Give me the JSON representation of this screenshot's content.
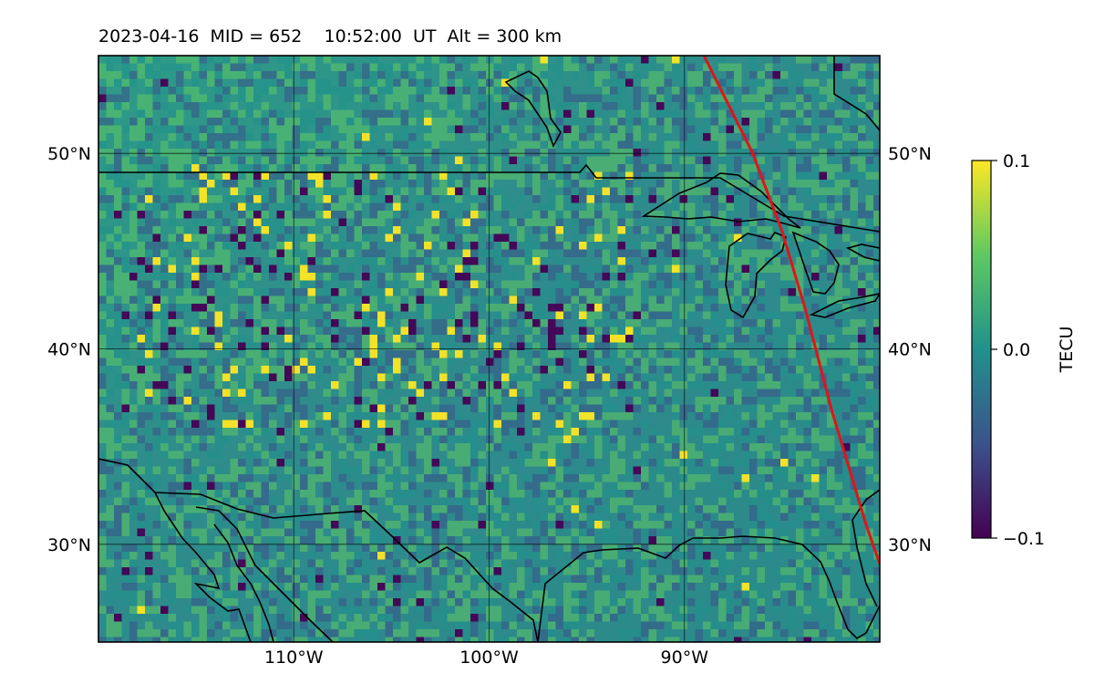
{
  "title": "2023-04-16  MID = 652    10:52:00  UT  Alt = 300 km",
  "map": {
    "lon_range": [
      -120,
      -80
    ],
    "lat_range": [
      25,
      55
    ],
    "lon_ticks": [
      {
        "value": -110,
        "label": "110°W"
      },
      {
        "value": -100,
        "label": "100°W"
      },
      {
        "value": -90,
        "label": "90°W"
      }
    ],
    "lat_ticks": [
      {
        "value": 50,
        "label": "50°N"
      },
      {
        "value": 40,
        "label": "40°N"
      },
      {
        "value": 30,
        "label": "30°N"
      }
    ],
    "track_color": "#e0141a",
    "track_points": [
      [
        -89,
        55
      ],
      [
        -87.5,
        52
      ],
      [
        -86.5,
        50
      ],
      [
        -85,
        46
      ],
      [
        -83.8,
        42
      ],
      [
        -82.5,
        37
      ],
      [
        -80.7,
        31
      ],
      [
        -80,
        29
      ]
    ]
  },
  "colorbar": {
    "label": "TECU",
    "min": -0.1,
    "max": 0.1,
    "ticks": [
      {
        "value": 0.1,
        "label": "0.1"
      },
      {
        "value": 0.0,
        "label": "0.0"
      },
      {
        "value": -0.1,
        "label": "−0.1"
      }
    ],
    "colors": [
      "#440154",
      "#3b528b",
      "#21918c",
      "#5ec962",
      "#fde725"
    ]
  }
}
